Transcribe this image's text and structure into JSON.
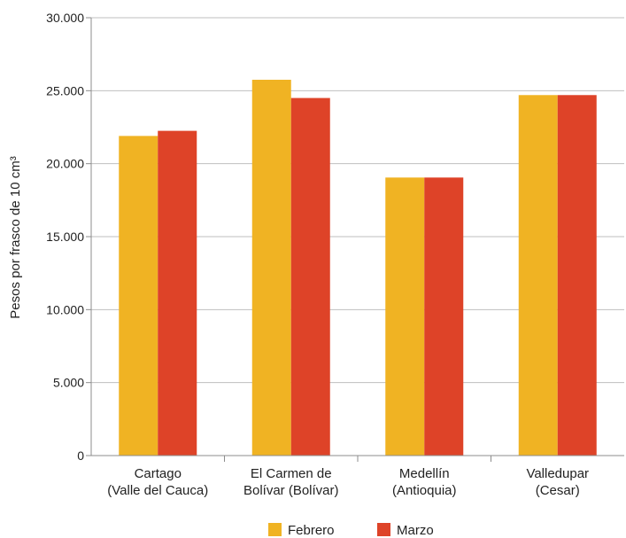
{
  "chart_data": {
    "type": "bar",
    "categories": [
      [
        "Cartago",
        "(Valle del Cauca)"
      ],
      [
        "El Carmen de",
        "Bolívar (Bolívar)"
      ],
      [
        "Medellín",
        "(Antioquia)"
      ],
      [
        "Valledupar",
        "(Cesar)"
      ]
    ],
    "series": [
      {
        "name": "Febrero",
        "color": "#F0B323",
        "values": [
          21900,
          25750,
          19050,
          24700
        ]
      },
      {
        "name": "Marzo",
        "color": "#DE4328",
        "values": [
          22250,
          24500,
          19050,
          24700
        ]
      }
    ],
    "ylabel": "Pesos por frasco de 10 cm³",
    "ylim": [
      0,
      30000
    ],
    "yticks": [
      0,
      5000,
      10000,
      15000,
      20000,
      25000,
      30000
    ],
    "ytick_labels": [
      "0",
      "5.000",
      "10.000",
      "15.000",
      "20.000",
      "25.000",
      "30.000"
    ],
    "grid": "horizontal",
    "legend": "bottom"
  }
}
